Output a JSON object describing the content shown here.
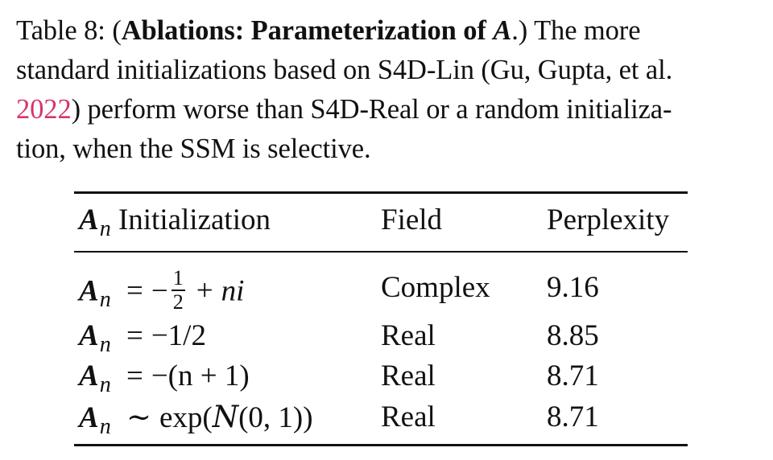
{
  "caption": {
    "label": "Table 8:",
    "bold_title": "Ablations: Parameterization of",
    "bold_symbol": "A",
    "line1_end": ".) The more",
    "line2": "standard initializations based on S4D-Lin (Gu, Gupta, et al.",
    "cite_year": "2022",
    "line3_rest": ") perform worse than S4D-Real or a random initializa-",
    "line4": "tion, when the SSM is selective."
  },
  "table": {
    "headers": {
      "col1_symbol": "A",
      "col1_sub": "n",
      "col1_label": "Initialization",
      "col2": "Field",
      "col3": "Perplexity"
    },
    "rows": [
      {
        "init": {
          "sym": "A",
          "sub": "n",
          "op": "=",
          "prefix": "−",
          "num": "1",
          "den": "2",
          "suffix_op": "+",
          "suffix": "ni"
        },
        "field": "Complex",
        "perplexity": "9.16"
      },
      {
        "init": {
          "sym": "A",
          "sub": "n",
          "op": "=",
          "expr": "−1/2"
        },
        "field": "Real",
        "perplexity": "8.85"
      },
      {
        "init": {
          "sym": "A",
          "sub": "n",
          "op": "=",
          "expr": "−(n + 1)"
        },
        "field": "Real",
        "perplexity": "8.71"
      },
      {
        "init": {
          "sym": "A",
          "sub": "n",
          "op": "∼",
          "expr_pre": "exp(",
          "calN": "N",
          "expr_post": "(0, 1))"
        },
        "field": "Real",
        "perplexity": "8.71"
      }
    ]
  }
}
